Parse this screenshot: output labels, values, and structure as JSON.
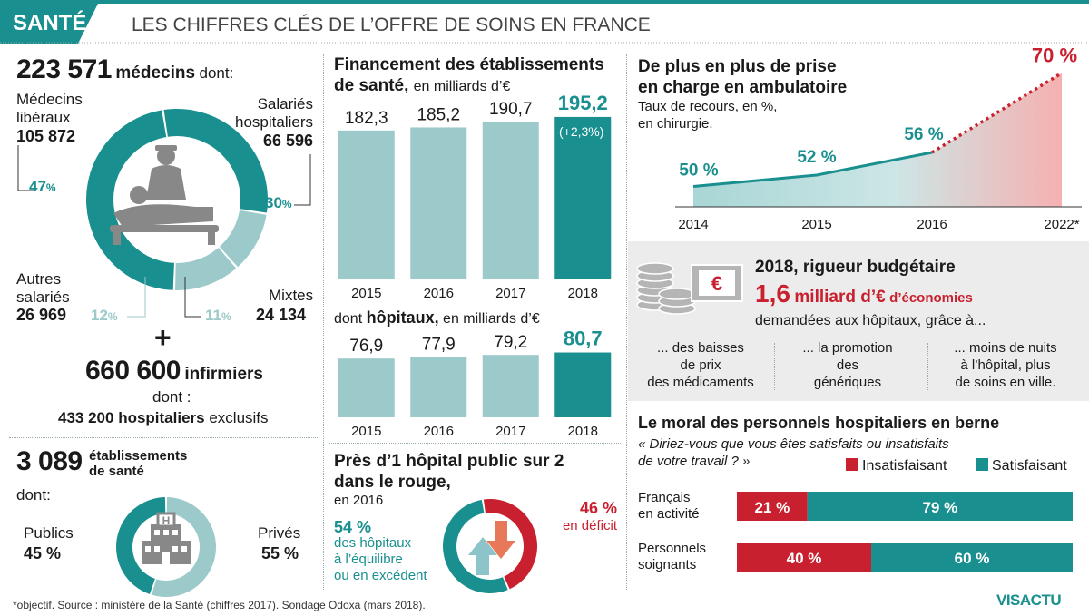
{
  "header": {
    "tag": "SANTÉ",
    "title": "LES CHIFFRES CLÉS DE L’OFFRE DE SOINS EN FRANCE"
  },
  "colors": {
    "teal": "#1a8f8f",
    "teal_light": "#9cc9c9",
    "red": "#c8202e",
    "gray_panel": "#ececec"
  },
  "medecins": {
    "total": "223 571",
    "total_label": "médecins",
    "dont": "dont:",
    "segments": [
      {
        "name": "Médecins libéraux",
        "label_l1": "Médecins",
        "label_l2": "libéraux",
        "count": "105 872",
        "pct": "47",
        "value": 47,
        "color": "#1a8f8f"
      },
      {
        "name": "Salariés hospitaliers",
        "label_l1": "Salariés",
        "label_l2": "hospitaliers",
        "count": "66 596",
        "pct": "30",
        "value": 30,
        "color": "#1a8f8f"
      },
      {
        "name": "Mixtes",
        "label_l1": "Mixtes",
        "count": "24 134",
        "pct": "11",
        "value": 11,
        "color": "#9cc9c9"
      },
      {
        "name": "Autres salariés",
        "label_l1": "Autres",
        "label_l2": "salariés",
        "count": "26 969",
        "pct": "12",
        "value": 12,
        "color": "#9cc9c9"
      }
    ],
    "pct_suffix": "%"
  },
  "infirmiers": {
    "plus": "+",
    "total": "660 600",
    "label": "infirmiers",
    "dont": "dont :",
    "hosp_count": "433 200",
    "hosp_label": "hospitaliers",
    "hosp_suffix": "exclusifs"
  },
  "etablissements": {
    "total": "3 089",
    "label_l1": "établissements",
    "label_l2": "de santé",
    "dont": "dont:",
    "publics_label": "Publics",
    "publics_pct": "45 %",
    "prives_label": "Privés",
    "prives_pct": "55 %",
    "publics_value": 45,
    "prives_value": 55
  },
  "financement": {
    "title_l1": "Financement des établissements",
    "title_l2": "de santé,",
    "unit": "en milliards d’€",
    "sub_title": "hôpitaux,",
    "sub_prefix": "dont",
    "sub_unit": "en milliards d’€",
    "growth": "(+2,3%)"
  },
  "chart_data": [
    {
      "type": "pie",
      "title": "223 571 médecins dont:",
      "categories": [
        "Médecins libéraux",
        "Salariés hospitaliers",
        "Mixtes",
        "Autres salariés"
      ],
      "values": [
        47,
        30,
        11,
        12
      ]
    },
    {
      "type": "bar",
      "title": "Financement des établissements de santé, en milliards d’€",
      "categories": [
        "2015",
        "2016",
        "2017",
        "2018"
      ],
      "values": [
        182.3,
        185.2,
        190.7,
        195.2
      ],
      "value_labels": [
        "182,3",
        "185,2",
        "190,7",
        "195,2"
      ],
      "ylim": [
        0,
        200
      ]
    },
    {
      "type": "bar",
      "title": "dont hôpitaux, en milliards d’€",
      "categories": [
        "2015",
        "2016",
        "2017",
        "2018"
      ],
      "values": [
        76.9,
        77.9,
        79.2,
        80.7
      ],
      "value_labels": [
        "76,9",
        "77,9",
        "79,2",
        "80,7"
      ],
      "ylim": [
        0,
        85
      ]
    },
    {
      "type": "area",
      "title": "De plus en plus de prise en charge en ambulatoire",
      "x": [
        "2014",
        "2015",
        "2016",
        "2022*"
      ],
      "values": [
        50,
        52,
        56,
        70
      ],
      "value_labels": [
        "50 %",
        "52 %",
        "56 %",
        "70 %"
      ],
      "ylabel": "Taux de recours, en %, en chirurgie."
    },
    {
      "type": "bar",
      "title": "Le moral des personnels hospitaliers en berne",
      "categories": [
        "Français en activité",
        "Personnels soignants"
      ],
      "series": [
        {
          "name": "Insatisfaisant",
          "values": [
            21,
            40
          ]
        },
        {
          "name": "Satisfaisant",
          "values": [
            79,
            60
          ]
        }
      ]
    },
    {
      "type": "pie",
      "title": "Près d’1 hôpital public sur 2 dans le rouge, en 2016",
      "categories": [
        "en déficit",
        "à l’équilibre ou en excédent"
      ],
      "values": [
        46,
        54
      ]
    }
  ],
  "ambulatoire": {
    "title_l1": "De plus en plus de prise",
    "title_l2": "en charge en ambulatoire",
    "sub_l1": "Taux de recours, en %,",
    "sub_l2": "en chirurgie."
  },
  "rigueur": {
    "title": "2018, rigueur budgétaire",
    "amount": "1,6",
    "amount_text": "milliard d’€",
    "amount_suffix": "d’économies",
    "sub": "demandées aux hôpitaux, grâce à...",
    "col1": [
      "... des baisses",
      "de prix",
      "des médicaments"
    ],
    "col2": [
      "... la promotion",
      "des",
      "génériques"
    ],
    "col3": [
      "... moins de nuits",
      "à l’hôpital, plus",
      "de soins en ville."
    ],
    "euro_symbol": "€"
  },
  "rouge": {
    "title_l1": "Près d’1 hôpital public sur 2",
    "title_l2": "dans le rouge,",
    "sub": "en 2016",
    "deficit_pct": "46 %",
    "deficit_label": "en déficit",
    "eq_pct": "54 %",
    "eq_l1": "des hôpitaux",
    "eq_l2": "à l’équilibre",
    "eq_l3": "ou en excédent"
  },
  "moral": {
    "title": "Le moral des personnels hospitaliers en berne",
    "question_l1": "« Diriez-vous que vous êtes satisfaits ou insatisfaits",
    "question_l2": "de votre travail ? »",
    "legend_insat": "Insatisfaisant",
    "legend_sat": "Satisfaisant",
    "rows": [
      {
        "label_l1": "Français",
        "label_l2": "en activité",
        "insat": "21 %",
        "sat": "79 %"
      },
      {
        "label_l1": "Personnels",
        "label_l2": "soignants",
        "insat": "40 %",
        "sat": "60 %"
      }
    ]
  },
  "footer": {
    "source": "*objectif.  Source : ministère de la Santé (chiffres 2017).  Sondage Odoxa (mars 2018).",
    "logo": "VISACTU"
  }
}
